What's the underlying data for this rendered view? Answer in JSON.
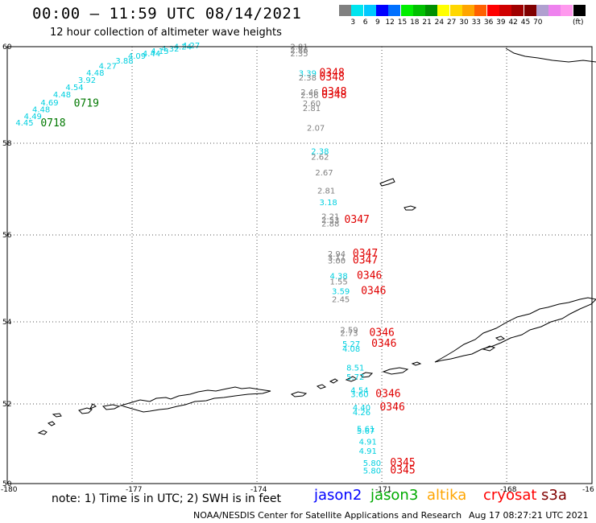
{
  "header": {
    "title": "00:00 – 11:59 UTC 08/14/2021",
    "subtitle": "12 hour collection of altimeter wave heights"
  },
  "colorbar": {
    "colors": [
      "#808080",
      "#00e5ee",
      "#00c8ff",
      "#0000ff",
      "#0070ff",
      "#00ee00",
      "#00c000",
      "#009000",
      "#ffff00",
      "#ffd700",
      "#ffa500",
      "#ff6000",
      "#ff0000",
      "#d00000",
      "#a00000",
      "#800000",
      "#b0a0d0",
      "#ee82ee",
      "#ff99ee",
      "#000000"
    ],
    "ticks": [
      "3",
      "6",
      "9",
      "12",
      "15",
      "18",
      "21",
      "24",
      "27",
      "30",
      "33",
      "36",
      "39",
      "42",
      "45",
      "70"
    ],
    "unit": "(ft)"
  },
  "map": {
    "lat_labels": [
      "60",
      "58",
      "56",
      "54",
      "52",
      "50"
    ],
    "lon_labels": [
      "-180",
      "-177",
      "-174",
      "-171",
      "-168",
      "-16"
    ],
    "colors": {
      "cyan": "#00d0e0",
      "gray": "#808080",
      "green": "#007800",
      "red": "#e00000"
    },
    "labels": [
      {
        "text": "2.81",
        "color": "gray",
        "lon": -173.2,
        "lat": 59.94
      },
      {
        "text": "2.86",
        "color": "gray",
        "lon": -173.2,
        "lat": 59.87
      },
      {
        "text": "2.35",
        "color": "gray",
        "lon": -173.2,
        "lat": 59.8
      },
      {
        "text": "3.39",
        "color": "cyan",
        "lon": -173.0,
        "lat": 59.39
      },
      {
        "text": "2.38",
        "color": "gray",
        "lon": -173.0,
        "lat": 59.3
      },
      {
        "text": "0348",
        "color": "red",
        "lon": -172.5,
        "lat": 59.39
      },
      {
        "text": "0348",
        "color": "red",
        "lon": -172.5,
        "lat": 59.3
      },
      {
        "text": "2.46",
        "color": "gray",
        "lon": -172.95,
        "lat": 59.0
      },
      {
        "text": "2.56",
        "color": "gray",
        "lon": -172.95,
        "lat": 58.93
      },
      {
        "text": "0348",
        "color": "red",
        "lon": -172.45,
        "lat": 59.0
      },
      {
        "text": "0348",
        "color": "red",
        "lon": -172.45,
        "lat": 58.93
      },
      {
        "text": "2.60",
        "color": "gray",
        "lon": -172.9,
        "lat": 58.77
      },
      {
        "text": "2.81",
        "color": "gray",
        "lon": -172.9,
        "lat": 58.67
      },
      {
        "text": "2.07",
        "color": "gray",
        "lon": -172.8,
        "lat": 58.26
      },
      {
        "text": "2.38",
        "color": "cyan",
        "lon": -172.7,
        "lat": 57.76
      },
      {
        "text": "2.62",
        "color": "gray",
        "lon": -172.7,
        "lat": 57.64
      },
      {
        "text": "2.67",
        "color": "gray",
        "lon": -172.6,
        "lat": 57.3
      },
      {
        "text": "2.81",
        "color": "gray",
        "lon": -172.55,
        "lat": 56.9
      },
      {
        "text": "3.18",
        "color": "cyan",
        "lon": -172.5,
        "lat": 56.65
      },
      {
        "text": "2.21",
        "color": "gray",
        "lon": -172.45,
        "lat": 56.34
      },
      {
        "text": "2.53",
        "color": "gray",
        "lon": -172.45,
        "lat": 56.26
      },
      {
        "text": "2.88",
        "color": "gray",
        "lon": -172.45,
        "lat": 56.18
      },
      {
        "text": "0347",
        "color": "red",
        "lon": -171.9,
        "lat": 56.26
      },
      {
        "text": "2.94",
        "color": "gray",
        "lon": -172.3,
        "lat": 55.5
      },
      {
        "text": "3.11",
        "color": "gray",
        "lon": -172.3,
        "lat": 55.42
      },
      {
        "text": "3.00",
        "color": "gray",
        "lon": -172.3,
        "lat": 55.34
      },
      {
        "text": "0347",
        "color": "red",
        "lon": -171.7,
        "lat": 55.5
      },
      {
        "text": "0347",
        "color": "red",
        "lon": -171.7,
        "lat": 55.34
      },
      {
        "text": "4.38",
        "color": "cyan",
        "lon": -172.25,
        "lat": 54.99
      },
      {
        "text": "1.55",
        "color": "gray",
        "lon": -172.25,
        "lat": 54.86
      },
      {
        "text": "0346",
        "color": "red",
        "lon": -171.6,
        "lat": 54.99
      },
      {
        "text": "3.59",
        "color": "cyan",
        "lon": -172.2,
        "lat": 54.64
      },
      {
        "text": "2.45",
        "color": "gray",
        "lon": -172.2,
        "lat": 54.45
      },
      {
        "text": "0346",
        "color": "red",
        "lon": -171.5,
        "lat": 54.64
      },
      {
        "text": "2.59",
        "color": "gray",
        "lon": -172.0,
        "lat": 53.74
      },
      {
        "text": "2.73",
        "color": "gray",
        "lon": -172.0,
        "lat": 53.66
      },
      {
        "text": "0346",
        "color": "red",
        "lon": -171.3,
        "lat": 53.66
      },
      {
        "text": "5.27",
        "color": "cyan",
        "lon": -171.95,
        "lat": 53.39
      },
      {
        "text": "4.08",
        "color": "cyan",
        "lon": -171.95,
        "lat": 53.27
      },
      {
        "text": "0346",
        "color": "red",
        "lon": -171.25,
        "lat": 53.39
      },
      {
        "text": "8.51",
        "color": "cyan",
        "lon": -171.85,
        "lat": 52.81
      },
      {
        "text": "5.72",
        "color": "cyan",
        "lon": -171.85,
        "lat": 52.59
      },
      {
        "text": "4.54",
        "color": "cyan",
        "lon": -171.75,
        "lat": 52.26
      },
      {
        "text": "3.60",
        "color": "cyan",
        "lon": -171.75,
        "lat": 52.17
      },
      {
        "text": "0346",
        "color": "red",
        "lon": -171.15,
        "lat": 52.17
      },
      {
        "text": "4.40",
        "color": "cyan",
        "lon": -171.7,
        "lat": 51.84
      },
      {
        "text": "4.26",
        "color": "cyan",
        "lon": -171.7,
        "lat": 51.72
      },
      {
        "text": "0346",
        "color": "red",
        "lon": -171.05,
        "lat": 51.84
      },
      {
        "text": "5.61",
        "color": "cyan",
        "lon": -171.6,
        "lat": 51.3
      },
      {
        "text": "5.67",
        "color": "cyan",
        "lon": -171.6,
        "lat": 51.25
      },
      {
        "text": "4.91",
        "color": "cyan",
        "lon": -171.55,
        "lat": 50.98
      },
      {
        "text": "4.91",
        "color": "cyan",
        "lon": -171.55,
        "lat": 50.75
      },
      {
        "text": "5.80",
        "color": "cyan",
        "lon": -171.45,
        "lat": 50.44
      },
      {
        "text": "5.80",
        "color": "cyan",
        "lon": -171.45,
        "lat": 50.25
      },
      {
        "text": "0345",
        "color": "red",
        "lon": -170.8,
        "lat": 50.44
      },
      {
        "text": "0345",
        "color": "red",
        "lon": -170.8,
        "lat": 50.25
      },
      {
        "text": "4.45",
        "color": "cyan",
        "lon": -179.8,
        "lat": 58.37
      },
      {
        "text": "4.49",
        "color": "cyan",
        "lon": -179.6,
        "lat": 58.5
      },
      {
        "text": "4.48",
        "color": "cyan",
        "lon": -179.4,
        "lat": 58.64
      },
      {
        "text": "4.69",
        "color": "cyan",
        "lon": -179.2,
        "lat": 58.78
      },
      {
        "text": "4.48",
        "color": "cyan",
        "lon": -178.9,
        "lat": 58.95
      },
      {
        "text": "4.54",
        "color": "cyan",
        "lon": -178.6,
        "lat": 59.1
      },
      {
        "text": "3.92",
        "color": "cyan",
        "lon": -178.3,
        "lat": 59.25
      },
      {
        "text": "4.48",
        "color": "cyan",
        "lon": -178.1,
        "lat": 59.4
      },
      {
        "text": "4.27",
        "color": "cyan",
        "lon": -177.8,
        "lat": 59.54
      },
      {
        "text": "3.88",
        "color": "cyan",
        "lon": -177.4,
        "lat": 59.65
      },
      {
        "text": "4.09",
        "color": "cyan",
        "lon": -177.1,
        "lat": 59.75
      },
      {
        "text": "4.44",
        "color": "cyan",
        "lon": -176.75,
        "lat": 59.8
      },
      {
        "text": "4.13",
        "color": "cyan",
        "lon": -176.55,
        "lat": 59.85
      },
      {
        "text": "4.32",
        "color": "cyan",
        "lon": -176.3,
        "lat": 59.9
      },
      {
        "text": "4.24",
        "color": "cyan",
        "lon": -176.0,
        "lat": 59.94
      },
      {
        "text": "4.27",
        "color": "cyan",
        "lon": -175.8,
        "lat": 59.97
      },
      {
        "text": "0719",
        "color": "green",
        "lon": -178.4,
        "lat": 58.76
      },
      {
        "text": "0718",
        "color": "green",
        "lon": -179.2,
        "lat": 58.35
      }
    ]
  },
  "footer": {
    "note": "note: 1) Time is in UTC; 2) SWH is in feet",
    "satellites": [
      {
        "name": "jason2",
        "color": "#0000ff"
      },
      {
        "name": "jason3",
        "color": "#00aa00"
      },
      {
        "name": "altika",
        "color": "#ffa500"
      },
      {
        "name": "cryosat",
        "color": "#ff0000"
      },
      {
        "name": "s3a",
        "color": "#800000"
      }
    ],
    "credit": "NOAA/NESDIS Center for Satellite Applications and Research",
    "timestamp": "Aug 17 08:27:21 UTC 2021"
  }
}
